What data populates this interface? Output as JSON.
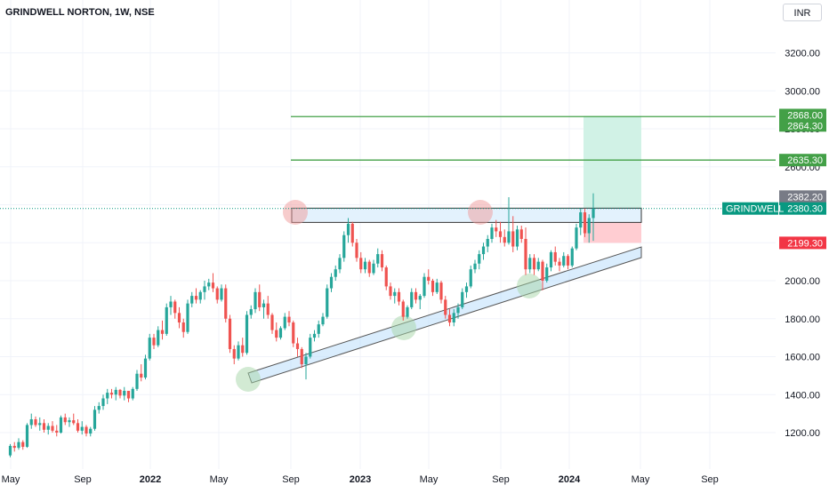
{
  "chart_title": "GRINDWELL NORTON, 1W, NSE",
  "currency": "INR",
  "colors": {
    "up": "#26a69a",
    "down": "#ef5350",
    "grid": "#f0f3fa",
    "target_line": "#43a047",
    "last_price": "#089981",
    "high_label": "#787b86",
    "stop": "#f23645",
    "channel_fill": "#bbdefb",
    "profit_zone": "#d1f2e6",
    "loss_zone": "#ffcdd2"
  },
  "chart_data": {
    "type": "candlestick",
    "title": "GRINDWELL NORTON, 1W, NSE",
    "x_tick_labels": [
      "May",
      "Sep",
      "2022",
      "May",
      "Sep",
      "2023",
      "May",
      "Sep",
      "2024",
      "May",
      "Sep"
    ],
    "y_tick_labels": [
      "1200.00",
      "1400.00",
      "1600.00",
      "1800.00",
      "2000.00",
      "2200.00",
      "2400.00",
      "2600.00",
      "2800.00",
      "3000.00",
      "3200.00"
    ],
    "y_range": [
      1060,
      3310
    ],
    "x_range": [
      "2021-05",
      "2024-09"
    ],
    "price_labels": [
      {
        "name": "target-2",
        "value": "2868.00",
        "kind": "target"
      },
      {
        "name": "target-1",
        "value": "2864.30",
        "kind": "target"
      },
      {
        "name": "target-0",
        "value": "2635.30",
        "kind": "target"
      },
      {
        "name": "high",
        "value": "2382.20",
        "kind": "high"
      },
      {
        "name": "last",
        "value": "2380.30",
        "kind": "last",
        "symbol": "GRINDWELL"
      },
      {
        "name": "stop",
        "value": "2199.30",
        "kind": "stop"
      }
    ],
    "horizontal_levels": [
      2864.3,
      2635.3
    ],
    "resistance_zone": [
      2307,
      2382
    ],
    "ohlc_weekly": [
      [
        1080,
        1140,
        1070,
        1130
      ],
      [
        1130,
        1150,
        1100,
        1120
      ],
      [
        1120,
        1170,
        1110,
        1150
      ],
      [
        1150,
        1160,
        1110,
        1125
      ],
      [
        1125,
        1250,
        1120,
        1240
      ],
      [
        1240,
        1300,
        1220,
        1270
      ],
      [
        1270,
        1285,
        1230,
        1240
      ],
      [
        1240,
        1280,
        1210,
        1250
      ],
      [
        1250,
        1270,
        1200,
        1215
      ],
      [
        1215,
        1250,
        1190,
        1235
      ],
      [
        1235,
        1260,
        1200,
        1210
      ],
      [
        1210,
        1240,
        1180,
        1200
      ],
      [
        1200,
        1290,
        1195,
        1280
      ],
      [
        1280,
        1300,
        1240,
        1255
      ],
      [
        1255,
        1280,
        1230,
        1265
      ],
      [
        1265,
        1300,
        1240,
        1250
      ],
      [
        1250,
        1270,
        1200,
        1210
      ],
      [
        1210,
        1260,
        1190,
        1230
      ],
      [
        1230,
        1240,
        1180,
        1195
      ],
      [
        1195,
        1230,
        1180,
        1220
      ],
      [
        1220,
        1340,
        1210,
        1320
      ],
      [
        1320,
        1360,
        1300,
        1340
      ],
      [
        1340,
        1400,
        1320,
        1380
      ],
      [
        1380,
        1430,
        1350,
        1410
      ],
      [
        1410,
        1430,
        1380,
        1400
      ],
      [
        1400,
        1440,
        1370,
        1425
      ],
      [
        1425,
        1430,
        1380,
        1395
      ],
      [
        1395,
        1440,
        1370,
        1420
      ],
      [
        1420,
        1420,
        1360,
        1380
      ],
      [
        1380,
        1440,
        1370,
        1430
      ],
      [
        1430,
        1530,
        1420,
        1510
      ],
      [
        1510,
        1560,
        1470,
        1490
      ],
      [
        1490,
        1610,
        1480,
        1590
      ],
      [
        1590,
        1720,
        1580,
        1700
      ],
      [
        1700,
        1720,
        1640,
        1660
      ],
      [
        1660,
        1760,
        1650,
        1740
      ],
      [
        1740,
        1790,
        1690,
        1720
      ],
      [
        1720,
        1880,
        1710,
        1860
      ],
      [
        1860,
        1920,
        1820,
        1890
      ],
      [
        1890,
        1900,
        1800,
        1830
      ],
      [
        1830,
        1860,
        1750,
        1780
      ],
      [
        1780,
        1800,
        1700,
        1730
      ],
      [
        1730,
        1900,
        1720,
        1880
      ],
      [
        1880,
        1940,
        1860,
        1920
      ],
      [
        1920,
        1960,
        1880,
        1900
      ],
      [
        1900,
        1950,
        1880,
        1940
      ],
      [
        1940,
        2000,
        1900,
        1970
      ],
      [
        1970,
        2010,
        1950,
        1990
      ],
      [
        1990,
        2040,
        1940,
        1960
      ],
      [
        1960,
        1970,
        1880,
        1900
      ],
      [
        1900,
        1980,
        1890,
        1960
      ],
      [
        1960,
        1980,
        1780,
        1800
      ],
      [
        1800,
        1820,
        1620,
        1640
      ],
      [
        1640,
        1660,
        1560,
        1590
      ],
      [
        1590,
        1680,
        1580,
        1660
      ],
      [
        1660,
        1700,
        1600,
        1620
      ],
      [
        1620,
        1840,
        1610,
        1820
      ],
      [
        1820,
        1870,
        1800,
        1850
      ],
      [
        1850,
        1960,
        1830,
        1940
      ],
      [
        1940,
        1980,
        1840,
        1860
      ],
      [
        1860,
        1900,
        1800,
        1880
      ],
      [
        1880,
        1920,
        1800,
        1820
      ],
      [
        1820,
        1830,
        1720,
        1740
      ],
      [
        1740,
        1780,
        1680,
        1700
      ],
      [
        1700,
        1760,
        1690,
        1750
      ],
      [
        1750,
        1830,
        1740,
        1810
      ],
      [
        1810,
        1840,
        1760,
        1780
      ],
      [
        1780,
        1790,
        1650,
        1670
      ],
      [
        1670,
        1700,
        1600,
        1640
      ],
      [
        1640,
        1650,
        1540,
        1560
      ],
      [
        1560,
        1620,
        1480,
        1600
      ],
      [
        1600,
        1720,
        1590,
        1700
      ],
      [
        1700,
        1740,
        1680,
        1720
      ],
      [
        1720,
        1790,
        1700,
        1770
      ],
      [
        1770,
        1830,
        1760,
        1810
      ],
      [
        1810,
        1980,
        1800,
        1960
      ],
      [
        1960,
        2040,
        1940,
        2020
      ],
      [
        2020,
        2080,
        2000,
        2060
      ],
      [
        2060,
        2140,
        2040,
        2120
      ],
      [
        2120,
        2260,
        2100,
        2240
      ],
      [
        2240,
        2330,
        2200,
        2300
      ],
      [
        2300,
        2310,
        2180,
        2200
      ],
      [
        2200,
        2220,
        2100,
        2120
      ],
      [
        2120,
        2150,
        2040,
        2060
      ],
      [
        2060,
        2120,
        2040,
        2100
      ],
      [
        2100,
        2110,
        2020,
        2040
      ],
      [
        2040,
        2110,
        2030,
        2090
      ],
      [
        2090,
        2170,
        2070,
        2140
      ],
      [
        2140,
        2160,
        2050,
        2070
      ],
      [
        2070,
        2080,
        1950,
        1970
      ],
      [
        1970,
        1990,
        1900,
        1920
      ],
      [
        1920,
        1960,
        1880,
        1940
      ],
      [
        1940,
        1960,
        1870,
        1890
      ],
      [
        1890,
        1900,
        1790,
        1810
      ],
      [
        1810,
        1870,
        1800,
        1860
      ],
      [
        1860,
        1960,
        1850,
        1940
      ],
      [
        1940,
        1960,
        1880,
        1900
      ],
      [
        1900,
        1930,
        1850,
        1920
      ],
      [
        1920,
        2040,
        1910,
        2020
      ],
      [
        2020,
        2060,
        1980,
        2000
      ],
      [
        2000,
        2010,
        1920,
        1940
      ],
      [
        1940,
        2010,
        1930,
        1990
      ],
      [
        1990,
        2000,
        1880,
        1900
      ],
      [
        1900,
        1920,
        1800,
        1820
      ],
      [
        1820,
        1850,
        1760,
        1780
      ],
      [
        1780,
        1850,
        1760,
        1830
      ],
      [
        1830,
        1880,
        1800,
        1860
      ],
      [
        1860,
        1960,
        1850,
        1940
      ],
      [
        1940,
        1990,
        1910,
        1970
      ],
      [
        1970,
        2080,
        1960,
        2060
      ],
      [
        2060,
        2110,
        2040,
        2090
      ],
      [
        2090,
        2160,
        2060,
        2140
      ],
      [
        2140,
        2200,
        2110,
        2180
      ],
      [
        2180,
        2240,
        2150,
        2220
      ],
      [
        2220,
        2300,
        2200,
        2280
      ],
      [
        2280,
        2320,
        2230,
        2260
      ],
      [
        2260,
        2310,
        2200,
        2230
      ],
      [
        2230,
        2270,
        2180,
        2200
      ],
      [
        2200,
        2440,
        2190,
        2260
      ],
      [
        2260,
        2340,
        2150,
        2180
      ],
      [
        2180,
        2290,
        2160,
        2270
      ],
      [
        2270,
        2290,
        2200,
        2220
      ],
      [
        2220,
        2280,
        2030,
        2060
      ],
      [
        2060,
        2140,
        2040,
        2120
      ],
      [
        2120,
        2140,
        2030,
        2060
      ],
      [
        2060,
        2120,
        2050,
        2100
      ],
      [
        2100,
        2110,
        1950,
        2000
      ],
      [
        2000,
        2090,
        1990,
        2070
      ],
      [
        2070,
        2160,
        2050,
        2150
      ],
      [
        2150,
        2180,
        2080,
        2100
      ],
      [
        2100,
        2120,
        2050,
        2080
      ],
      [
        2080,
        2150,
        2070,
        2130
      ],
      [
        2130,
        2140,
        2060,
        2080
      ],
      [
        2080,
        2180,
        2070,
        2170
      ],
      [
        2170,
        2300,
        2160,
        2280
      ],
      [
        2280,
        2380,
        2240,
        2360
      ],
      [
        2360,
        2380,
        2230,
        2250
      ],
      [
        2250,
        2350,
        2200,
        2330
      ],
      [
        2330,
        2460,
        2210,
        2380
      ]
    ]
  }
}
